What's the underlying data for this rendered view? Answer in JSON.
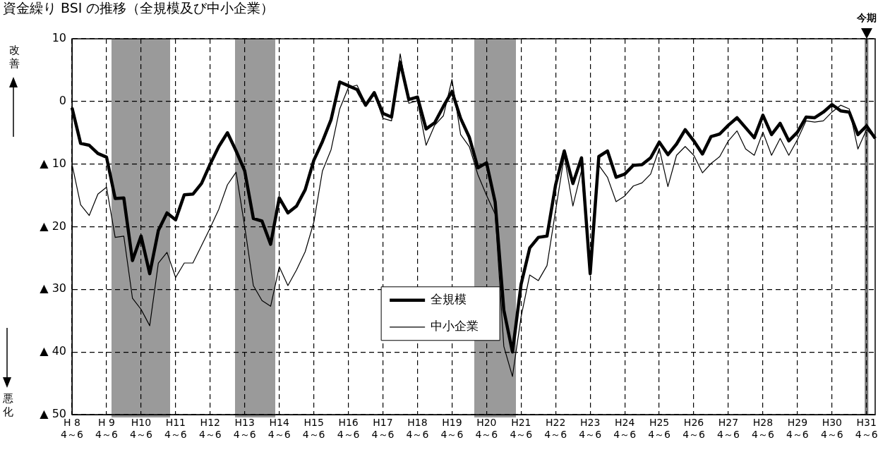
{
  "chart_data": {
    "type": "line",
    "title": "資金繰り BSI の推移（全規模及び中小企業）",
    "annotations": [
      "改善",
      "悪化"
    ],
    "categories": [
      "H 8\n4～6",
      null,
      null,
      null,
      "H 9\n4～6",
      null,
      null,
      null,
      "H10\n4～6",
      null,
      null,
      null,
      "H11\n4～6",
      null,
      null,
      null,
      "H12\n4～6",
      null,
      null,
      null,
      "H13\n4～6",
      null,
      null,
      null,
      "H14\n4～6",
      null,
      null,
      null,
      "H15\n4～6",
      null,
      null,
      null,
      "H16\n4～6",
      null,
      null,
      null,
      "H17\n4～6",
      null,
      null,
      null,
      "H18\n4～6",
      null,
      null,
      null,
      "H19\n4～6",
      null,
      null,
      null,
      "H20\n4～6",
      null,
      null,
      null,
      "H21\n4～6",
      null,
      null,
      null,
      "H22\n4～6",
      null,
      null,
      null,
      "H23\n4～6",
      null,
      null,
      null,
      "H24\n4～6",
      null,
      null,
      null,
      "H25\n4～6",
      null,
      null,
      null,
      "H26\n4～6",
      null,
      null,
      null,
      "H27\n4～6",
      null,
      null,
      null,
      "H28\n4～6",
      null,
      null,
      null,
      "H29\n4～6",
      null,
      null,
      null,
      "H30\n4～6",
      null,
      null,
      null,
      "H31\n4～6",
      null
    ],
    "series": [
      {
        "name": "全規模",
        "color": "#000000",
        "values": [
          -1,
          -6.7,
          -7,
          -8.3,
          -8.9,
          -15.5,
          -15.4,
          -25.4,
          -21.5,
          -27.5,
          -20.6,
          -17.8,
          -18.9,
          -14.9,
          -14.8,
          -13.1,
          -10,
          -7.2,
          -5,
          -7.9,
          -11.1,
          -18.7,
          -19.1,
          -22.8,
          -15.4,
          -17.8,
          -16.7,
          -14.1,
          -9.4,
          -6.4,
          -2.9,
          3.1,
          2.5,
          1.9,
          -0.6,
          1.4,
          -1.9,
          -2.5,
          6.3,
          0.3,
          0.7,
          -4.4,
          -3.4,
          -0.8,
          1.6,
          -2.7,
          -5.7,
          -10.6,
          -9.8,
          -16.1,
          -33.3,
          -40,
          -29.2,
          -23.4,
          -21.7,
          -21.5,
          -13.3,
          -7.9,
          -13.1,
          -9,
          -27.5,
          -8.8,
          -7.9,
          -12.1,
          -11.6,
          -10.2,
          -10.1,
          -9,
          -6.5,
          -8.5,
          -6.8,
          -4.5,
          -6.3,
          -8.4,
          -5.6,
          -5.2,
          -3.8,
          -2.6,
          -4.2,
          -5.8,
          -2.2,
          -5.3,
          -3.5,
          -6.3,
          -4.9,
          -2.5,
          -2.6,
          -1.7,
          -0.5,
          -1.5,
          -1.7,
          -5.3,
          -3.9,
          -5.9
        ]
      },
      {
        "name": "中小企業",
        "color": "#000000",
        "values": [
          -10,
          -16.5,
          -18.2,
          -14.8,
          -13.7,
          -21.7,
          -21.5,
          -31.4,
          -33.2,
          -35.8,
          -25.8,
          -24.1,
          -28.1,
          -25.8,
          -25.8,
          -23,
          -20.2,
          -17.2,
          -13.3,
          -11.3,
          -20,
          -29.4,
          -31.8,
          -32.7,
          -26.4,
          -29.4,
          -26.9,
          -24,
          -19.3,
          -11.1,
          -7.7,
          -1.2,
          2.2,
          2.6,
          -0.3,
          1.2,
          -2.7,
          -3.1,
          7.6,
          -0.3,
          0.1,
          -7,
          -3.8,
          -2.3,
          3.5,
          -5.3,
          -7.2,
          -11.7,
          -15,
          -18,
          -39.1,
          -43.9,
          -34.4,
          -27.7,
          -28.6,
          -26.2,
          -17.4,
          -8.7,
          -16.7,
          -11,
          -27.7,
          -10.2,
          -12.1,
          -16,
          -15.1,
          -13.5,
          -13,
          -11.6,
          -7.5,
          -13.6,
          -8.6,
          -7.2,
          -8.6,
          -11.4,
          -9.9,
          -8.8,
          -6.3,
          -4.7,
          -7.6,
          -8.6,
          -4.9,
          -8.6,
          -5.9,
          -8.6,
          -6.1,
          -3.1,
          -3.3,
          -3.1,
          -1.7,
          -0.6,
          -1.2,
          -7.6,
          -4.5,
          -5.9
        ]
      }
    ],
    "ylim": [
      -50,
      10
    ],
    "yticks": [
      10,
      0,
      {
        "value": -10,
        "label": "▲ 10"
      },
      {
        "value": -20,
        "label": "▲ 20"
      },
      {
        "value": -30,
        "label": "▲ 30"
      },
      {
        "value": -40,
        "label": "▲ 40"
      },
      {
        "value": -50,
        "label": "▲ 50"
      }
    ],
    "ref_lines": [
      {
        "axis": "x",
        "value": "H31\n4～6",
        "label": "今期",
        "color": "#777777"
      }
    ],
    "grid": true,
    "legend": "bottom",
    "marker": "none",
    "line_style": "solid"
  }
}
